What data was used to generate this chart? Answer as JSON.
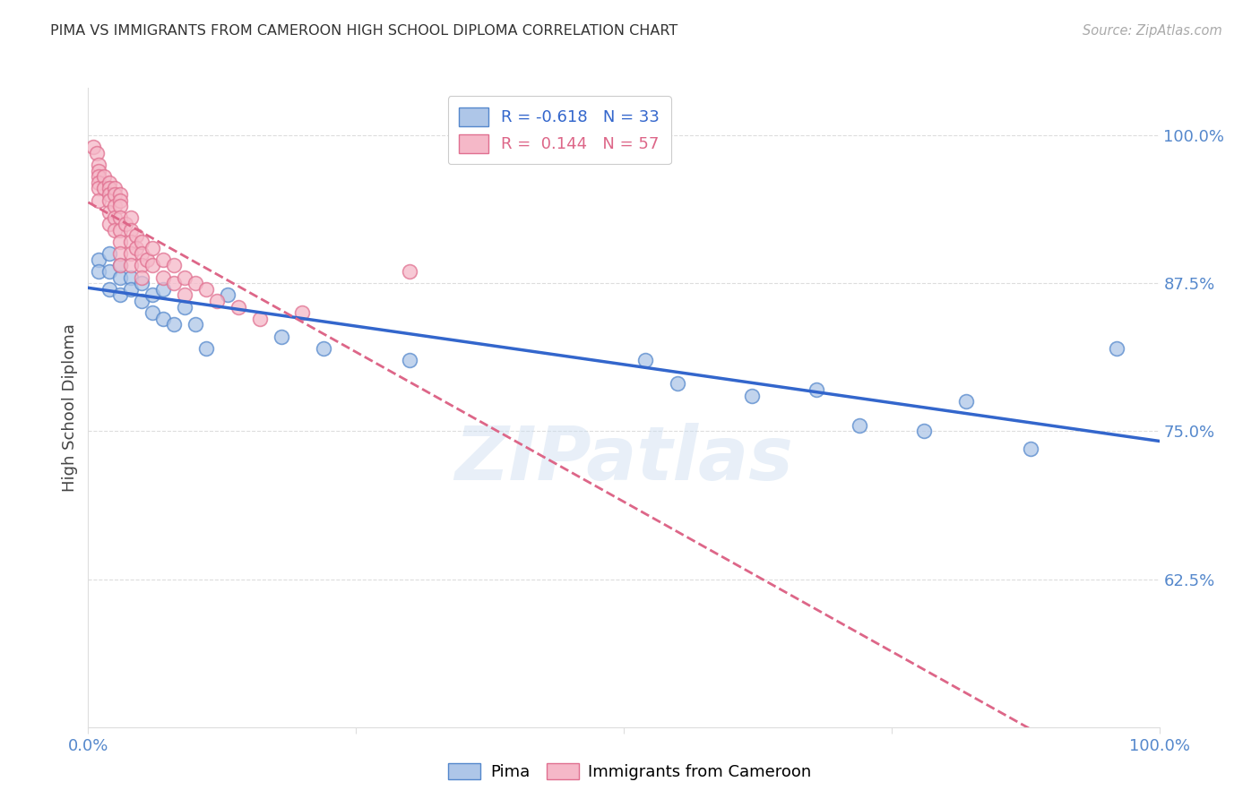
{
  "title": "PIMA VS IMMIGRANTS FROM CAMEROON HIGH SCHOOL DIPLOMA CORRELATION CHART",
  "source": "Source: ZipAtlas.com",
  "ylabel": "High School Diploma",
  "xlim": [
    0.0,
    1.0
  ],
  "ylim": [
    0.5,
    1.04
  ],
  "y_ticks": [
    0.625,
    0.75,
    0.875,
    1.0
  ],
  "y_tick_labels": [
    "62.5%",
    "75.0%",
    "87.5%",
    "100.0%"
  ],
  "x_ticks": [
    0.0,
    0.25,
    0.5,
    0.75,
    1.0
  ],
  "x_tick_labels": [
    "0.0%",
    "",
    "",
    "",
    "100.0%"
  ],
  "R_pima": -0.618,
  "N_pima": 33,
  "R_cam": 0.144,
  "N_cam": 57,
  "pima_color": "#aec6e8",
  "cam_color": "#f5b8c8",
  "pima_edge_color": "#5588cc",
  "cam_edge_color": "#e07090",
  "pima_line_color": "#3366cc",
  "cam_line_color": "#dd6688",
  "background_color": "#ffffff",
  "watermark": "ZIPatlas",
  "grid_color": "#dddddd",
  "tick_color": "#5588cc",
  "pima_x": [
    0.01,
    0.01,
    0.02,
    0.02,
    0.02,
    0.03,
    0.03,
    0.03,
    0.04,
    0.04,
    0.05,
    0.05,
    0.06,
    0.06,
    0.07,
    0.07,
    0.08,
    0.09,
    0.1,
    0.11,
    0.13,
    0.18,
    0.22,
    0.3,
    0.52,
    0.55,
    0.62,
    0.68,
    0.72,
    0.78,
    0.82,
    0.88,
    0.96
  ],
  "pima_y": [
    0.895,
    0.885,
    0.9,
    0.885,
    0.87,
    0.89,
    0.88,
    0.865,
    0.88,
    0.87,
    0.875,
    0.86,
    0.865,
    0.85,
    0.87,
    0.845,
    0.84,
    0.855,
    0.84,
    0.82,
    0.865,
    0.83,
    0.82,
    0.81,
    0.81,
    0.79,
    0.78,
    0.785,
    0.755,
    0.75,
    0.775,
    0.735,
    0.82
  ],
  "cam_x": [
    0.005,
    0.008,
    0.01,
    0.01,
    0.01,
    0.01,
    0.01,
    0.01,
    0.015,
    0.015,
    0.02,
    0.02,
    0.02,
    0.02,
    0.02,
    0.02,
    0.025,
    0.025,
    0.025,
    0.025,
    0.025,
    0.03,
    0.03,
    0.03,
    0.03,
    0.03,
    0.03,
    0.03,
    0.03,
    0.035,
    0.04,
    0.04,
    0.04,
    0.04,
    0.04,
    0.045,
    0.045,
    0.05,
    0.05,
    0.05,
    0.05,
    0.055,
    0.06,
    0.06,
    0.07,
    0.07,
    0.08,
    0.08,
    0.09,
    0.09,
    0.1,
    0.11,
    0.12,
    0.14,
    0.16,
    0.2,
    0.3
  ],
  "cam_y": [
    0.99,
    0.985,
    0.975,
    0.97,
    0.965,
    0.96,
    0.955,
    0.945,
    0.965,
    0.955,
    0.96,
    0.955,
    0.95,
    0.945,
    0.935,
    0.925,
    0.955,
    0.95,
    0.94,
    0.93,
    0.92,
    0.95,
    0.945,
    0.94,
    0.93,
    0.92,
    0.91,
    0.9,
    0.89,
    0.925,
    0.93,
    0.92,
    0.91,
    0.9,
    0.89,
    0.915,
    0.905,
    0.91,
    0.9,
    0.89,
    0.88,
    0.895,
    0.905,
    0.89,
    0.895,
    0.88,
    0.89,
    0.875,
    0.88,
    0.865,
    0.875,
    0.87,
    0.86,
    0.855,
    0.845,
    0.85,
    0.885
  ]
}
